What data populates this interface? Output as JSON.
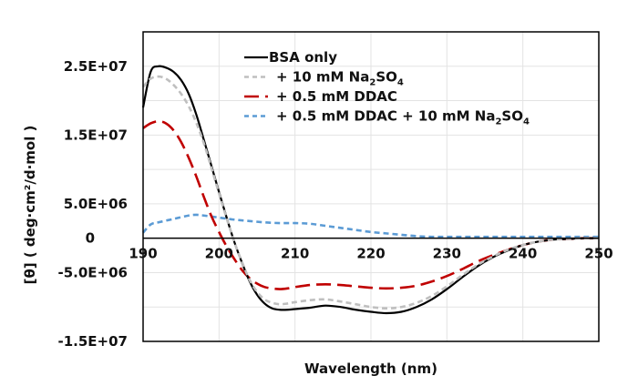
{
  "chart_data": {
    "type": "line",
    "title": "",
    "xlabel": "Wavelength (nm)",
    "ylabel": "[θ] ( deg·cm²/d·mol )",
    "xlim": [
      190,
      250
    ],
    "ylim": [
      -15000000,
      30000000
    ],
    "x_ticks": [
      190,
      200,
      210,
      220,
      230,
      240,
      250
    ],
    "y_ticks": [
      {
        "value": 25000000,
        "label": "2.5E+07"
      },
      {
        "value": 15000000,
        "label": "1.5E+07"
      },
      {
        "value": 5000000,
        "label": "5.0E+06"
      },
      {
        "value": 0,
        "label": "0"
      },
      {
        "value": -5000000,
        "label": "-5.0E+06"
      },
      {
        "value": -15000000,
        "label": "-1.5E+07"
      }
    ],
    "grid": true,
    "legend_position": "top-center",
    "series": [
      {
        "name": "BSA only",
        "legend": {
          "main": "BSA only"
        },
        "color": "#000000",
        "style": "solid",
        "x": [
          190,
          191,
          192,
          193,
          194,
          195,
          196,
          197,
          198,
          199,
          200,
          201,
          202,
          203,
          204,
          205,
          206,
          207,
          208,
          209,
          210,
          212,
          214,
          216,
          218,
          220,
          222,
          224,
          226,
          228,
          230,
          232,
          234,
          236,
          238,
          240,
          242,
          244,
          246,
          248,
          250
        ],
        "y": [
          19000000,
          24200000,
          25000000,
          24800000,
          24200000,
          23000000,
          21000000,
          18000000,
          14300000,
          10500000,
          6700000,
          3000000,
          -500000,
          -3500000,
          -6200000,
          -8200000,
          -9500000,
          -10200000,
          -10400000,
          -10400000,
          -10300000,
          -10100000,
          -9800000,
          -10000000,
          -10400000,
          -10700000,
          -10900000,
          -10700000,
          -10000000,
          -8900000,
          -7400000,
          -5700000,
          -4100000,
          -2800000,
          -1800000,
          -1000000,
          -500000,
          -200000,
          -100000,
          0,
          0
        ]
      },
      {
        "name": "+ 10 mM Na2SO4",
        "legend": {
          "main": "+ 10 mM  Na",
          "sub1": "2",
          "mid": "SO",
          "sub2": "4"
        },
        "color": "#bfbfbf",
        "style": "dash",
        "x": [
          190,
          191,
          192,
          193,
          194,
          195,
          196,
          197,
          198,
          199,
          200,
          201,
          202,
          203,
          204,
          205,
          206,
          207,
          208,
          209,
          210,
          212,
          214,
          216,
          218,
          220,
          222,
          224,
          226,
          228,
          230,
          232,
          234,
          236,
          238,
          240,
          242,
          244,
          246,
          248,
          250
        ],
        "y": [
          22000000,
          23200000,
          23500000,
          23200000,
          22300000,
          21000000,
          19200000,
          16800000,
          13800000,
          10200000,
          6500000,
          2900000,
          -500000,
          -3400000,
          -6000000,
          -7800000,
          -8900000,
          -9400000,
          -9600000,
          -9500000,
          -9300000,
          -9000000,
          -8900000,
          -9200000,
          -9600000,
          -10000000,
          -10200000,
          -10000000,
          -9400000,
          -8400000,
          -7000000,
          -5400000,
          -3900000,
          -2700000,
          -1700000,
          -1000000,
          -500000,
          -200000,
          -100000,
          0,
          0
        ]
      },
      {
        "name": "+ 0.5 mM DDAC",
        "legend": {
          "main": "+ 0.5 mM DDAC"
        },
        "color": "#c00000",
        "style": "longdash",
        "x": [
          190,
          191,
          192,
          193,
          194,
          195,
          196,
          197,
          198,
          199,
          200,
          201,
          202,
          203,
          204,
          205,
          206,
          207,
          208,
          209,
          210,
          212,
          214,
          216,
          218,
          220,
          222,
          224,
          226,
          228,
          230,
          232,
          234,
          236,
          238,
          240,
          242,
          244,
          246,
          248,
          250
        ],
        "y": [
          16000000,
          16700000,
          17000000,
          16700000,
          15700000,
          14000000,
          11700000,
          9000000,
          6000000,
          3200000,
          900000,
          -1200000,
          -3000000,
          -4600000,
          -5800000,
          -6600000,
          -7100000,
          -7300000,
          -7400000,
          -7300000,
          -7100000,
          -6800000,
          -6700000,
          -6800000,
          -7000000,
          -7200000,
          -7300000,
          -7200000,
          -6900000,
          -6300000,
          -5500000,
          -4500000,
          -3400000,
          -2500000,
          -1700000,
          -1000000,
          -500000,
          -200000,
          -100000,
          0,
          0
        ]
      },
      {
        "name": "+ 0.5 mM DDAC + 10 mM Na2SO4",
        "legend": {
          "main": "+ 0.5 mM DDAC + 10 mM Na",
          "sub1": "2",
          "mid": "SO",
          "sub2": "4"
        },
        "color": "#5b9bd5",
        "style": "dash",
        "x": [
          190,
          191,
          192,
          194,
          196,
          197,
          198,
          200,
          202,
          204,
          206,
          208,
          210,
          212,
          214,
          216,
          218,
          220,
          222,
          224,
          226,
          228,
          230,
          232,
          234,
          236,
          238,
          240,
          242,
          244,
          246,
          248,
          250
        ],
        "y": [
          800000,
          2000000,
          2300000,
          2800000,
          3300000,
          3400000,
          3300000,
          3000000,
          2700000,
          2500000,
          2300000,
          2200000,
          2200000,
          2100000,
          1800000,
          1500000,
          1200000,
          900000,
          700000,
          500000,
          300000,
          200000,
          200000,
          200000,
          200000,
          200000,
          200000,
          200000,
          200000,
          200000,
          200000,
          200000,
          200000
        ]
      }
    ]
  }
}
